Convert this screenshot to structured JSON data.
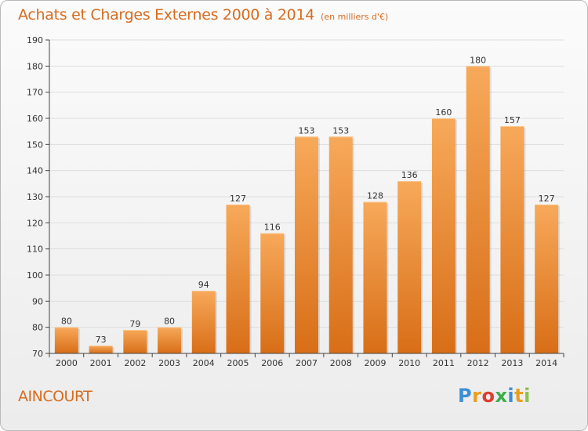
{
  "header": {
    "title": "Achats et Charges Externes 2000 à 2014",
    "unit": "(en milliers d'€)"
  },
  "footer": {
    "commune": "AINCOURT",
    "logo": {
      "letters": [
        "P",
        "r",
        "o",
        "x",
        "i",
        "t",
        "i"
      ],
      "colors": [
        "#3a8fd6",
        "#e8a020",
        "#e03a2e",
        "#3cae49",
        "#3a8fd6",
        "#e8a020",
        "#8bc34a"
      ]
    }
  },
  "colors": {
    "bar_top": "#f7a95a",
    "bar_bottom": "#d86e17",
    "grid": "#dddddd",
    "axis": "#444444"
  },
  "chart_data": {
    "type": "bar",
    "title": "Achats et Charges Externes 2000 à 2014",
    "subtitle": "(en milliers d'€)",
    "categories": [
      "2000",
      "2001",
      "2002",
      "2003",
      "2004",
      "2005",
      "2006",
      "2007",
      "2008",
      "2009",
      "2010",
      "2011",
      "2012",
      "2013",
      "2014"
    ],
    "values": [
      80,
      73,
      79,
      80,
      94,
      127,
      116,
      153,
      153,
      128,
      136,
      160,
      180,
      157,
      127
    ],
    "ylim": [
      70,
      190
    ],
    "yticks": [
      70,
      80,
      90,
      100,
      110,
      120,
      130,
      140,
      150,
      160,
      170,
      180,
      190
    ],
    "grid": true,
    "data_labels": true
  }
}
